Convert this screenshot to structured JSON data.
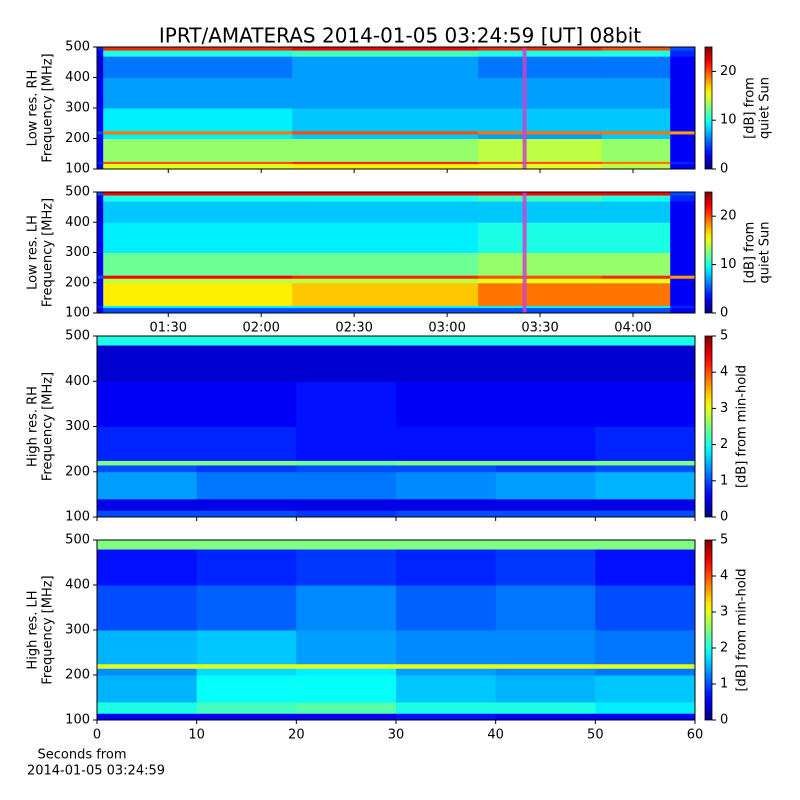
{
  "title": "IPRT/AMATERAS 2014-01-05 03:24:59 [UT]   08bit",
  "xlabel": [
    "Seconds from",
    "2014-01-05 03:24:59"
  ],
  "chart_data": [
    {
      "type": "heatmap",
      "ylabel": [
        "Low res. RH",
        "Frequency [MHz]"
      ],
      "xlim": [
        67,
        260
      ],
      "xticks": [
        {
          "value": 90,
          "label": "01:30"
        },
        {
          "value": 120,
          "label": "02:00"
        },
        {
          "value": 150,
          "label": "02:30"
        },
        {
          "value": 180,
          "label": "03:00"
        },
        {
          "value": 210,
          "label": "03:30"
        },
        {
          "value": 240,
          "label": "04:00"
        }
      ],
      "show_xtick_labels": false,
      "ylim": [
        100,
        500
      ],
      "yticks": [
        100,
        200,
        300,
        400,
        500
      ],
      "time_edges": [
        67,
        69,
        130,
        190,
        230,
        252,
        260
      ],
      "freq_edges": [
        100,
        118,
        125,
        200,
        215,
        225,
        300,
        400,
        470,
        490,
        500
      ],
      "z": [
        [
          3,
          15,
          16,
          15,
          14,
          3
        ],
        [
          4,
          20,
          21,
          20,
          19,
          4
        ],
        [
          3,
          13,
          13,
          14,
          13,
          3
        ],
        [
          3,
          9,
          8,
          7,
          8,
          3
        ],
        [
          5,
          19,
          20,
          19,
          19,
          18
        ],
        [
          3,
          9,
          8,
          8,
          8,
          3
        ],
        [
          3,
          7,
          7,
          7,
          7,
          3
        ],
        [
          2,
          6,
          7,
          6,
          6,
          3
        ],
        [
          3,
          10,
          11,
          10,
          10,
          4
        ],
        [
          4,
          21,
          22,
          21,
          20,
          5
        ]
      ],
      "markers": [
        205
      ],
      "marker_color": "#cc44cc",
      "clim": [
        0,
        25
      ],
      "cticks": [
        0,
        10,
        20
      ],
      "colorbar_label": [
        "[dB] from",
        "quiet Sun"
      ]
    },
    {
      "type": "heatmap",
      "ylabel": [
        "Low res. LH",
        "Frequency [MHz]"
      ],
      "xlim": [
        67,
        260
      ],
      "xticks": [
        {
          "value": 90,
          "label": "01:30"
        },
        {
          "value": 120,
          "label": "02:00"
        },
        {
          "value": 150,
          "label": "02:30"
        },
        {
          "value": 180,
          "label": "03:00"
        },
        {
          "value": 210,
          "label": "03:30"
        },
        {
          "value": 240,
          "label": "04:00"
        }
      ],
      "show_xtick_labels": true,
      "ylim": [
        100,
        500
      ],
      "yticks": [
        100,
        200,
        300,
        400,
        500
      ],
      "time_edges": [
        67,
        69,
        130,
        190,
        230,
        252,
        260
      ],
      "freq_edges": [
        100,
        118,
        125,
        200,
        215,
        225,
        300,
        400,
        470,
        490,
        500
      ],
      "z": [
        [
          3,
          5,
          5,
          5,
          5,
          3
        ],
        [
          4,
          9,
          9,
          9,
          9,
          4
        ],
        [
          3,
          16,
          17,
          19,
          19,
          3
        ],
        [
          3,
          14,
          14,
          15,
          15,
          3
        ],
        [
          5,
          22,
          21,
          20,
          21,
          18
        ],
        [
          3,
          12,
          12,
          13,
          13,
          3
        ],
        [
          3,
          9,
          9,
          10,
          10,
          3
        ],
        [
          2,
          8,
          8,
          8,
          8,
          3
        ],
        [
          3,
          10,
          10,
          11,
          10,
          4
        ],
        [
          5,
          22,
          22,
          22,
          22,
          5
        ]
      ],
      "markers": [
        205
      ],
      "marker_color": "#cc44cc",
      "clim": [
        0,
        25
      ],
      "cticks": [
        0,
        10,
        20
      ],
      "colorbar_label": [
        "[dB] from",
        "quiet Sun"
      ]
    },
    {
      "type": "heatmap",
      "ylabel": [
        "High res. RH",
        "Frequency [MHz]"
      ],
      "xlim": [
        0,
        60
      ],
      "xticks": [
        0,
        10,
        20,
        30,
        40,
        50,
        60
      ],
      "show_xtick_labels": false,
      "ylim": [
        100,
        500
      ],
      "yticks": [
        100,
        200,
        300,
        400,
        500
      ],
      "time_edges": [
        0,
        10,
        20,
        30,
        40,
        50,
        60
      ],
      "freq_edges": [
        100,
        115,
        140,
        200,
        215,
        225,
        300,
        400,
        480,
        500
      ],
      "z": [
        [
          1.0,
          1.0,
          0.9,
          1.0,
          1.0,
          1.0
        ],
        [
          0.5,
          0.5,
          0.5,
          0.5,
          0.5,
          0.5
        ],
        [
          1.4,
          1.2,
          1.2,
          1.3,
          1.4,
          1.5
        ],
        [
          1.0,
          0.9,
          1.0,
          1.0,
          0.9,
          1.0
        ],
        [
          2.5,
          2.5,
          2.4,
          2.5,
          2.5,
          2.5
        ],
        [
          0.8,
          0.8,
          0.7,
          0.7,
          0.7,
          0.8
        ],
        [
          0.6,
          0.6,
          0.7,
          0.6,
          0.6,
          0.6
        ],
        [
          0.4,
          0.4,
          0.4,
          0.4,
          0.4,
          0.4
        ],
        [
          2.0,
          2.0,
          2.0,
          2.0,
          2.0,
          2.0
        ]
      ],
      "clim": [
        0,
        5
      ],
      "cticks": [
        0,
        1,
        2,
        3,
        4,
        5
      ],
      "colorbar_label": [
        "[dB] from min-hold"
      ]
    },
    {
      "type": "heatmap",
      "ylabel": [
        "High res. LH",
        "Frequency [MHz]"
      ],
      "xlim": [
        0,
        60
      ],
      "xticks": [
        0,
        10,
        20,
        30,
        40,
        50,
        60
      ],
      "show_xtick_labels": true,
      "ylim": [
        100,
        500
      ],
      "yticks": [
        100,
        200,
        300,
        400,
        500
      ],
      "time_edges": [
        0,
        10,
        20,
        30,
        40,
        50,
        60
      ],
      "freq_edges": [
        100,
        115,
        140,
        200,
        215,
        225,
        300,
        400,
        480,
        500
      ],
      "z": [
        [
          0.6,
          0.6,
          0.6,
          0.7,
          0.6,
          0.6
        ],
        [
          2.0,
          2.2,
          2.3,
          2.0,
          2.0,
          1.8
        ],
        [
          1.5,
          1.9,
          1.9,
          1.6,
          1.5,
          1.6
        ],
        [
          1.3,
          1.7,
          1.8,
          1.4,
          1.3,
          1.2
        ],
        [
          3.0,
          3.0,
          3.0,
          3.0,
          3.0,
          3.0
        ],
        [
          1.5,
          1.6,
          1.4,
          1.3,
          1.3,
          1.2
        ],
        [
          1.0,
          1.1,
          1.3,
          1.1,
          1.2,
          1.0
        ],
        [
          0.7,
          0.8,
          0.9,
          0.8,
          0.9,
          0.7
        ],
        [
          2.5,
          2.5,
          2.5,
          2.5,
          2.5,
          2.5
        ]
      ],
      "clim": [
        0,
        5
      ],
      "cticks": [
        0,
        1,
        2,
        3,
        4,
        5
      ],
      "colorbar_label": [
        "[dB] from min-hold"
      ]
    }
  ]
}
